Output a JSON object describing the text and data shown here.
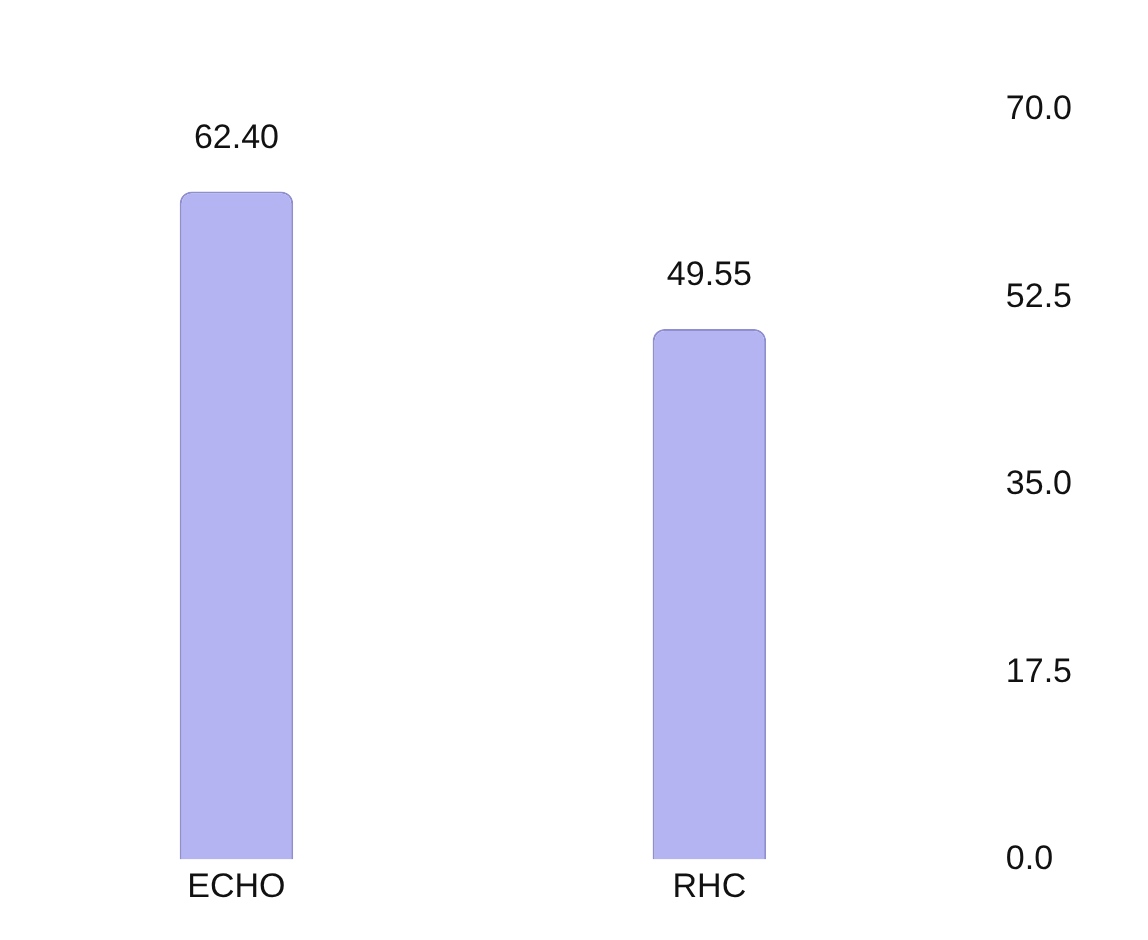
{
  "chart_data": {
    "type": "bar",
    "categories": [
      "ECHO",
      "RHC"
    ],
    "values": [
      62.4,
      49.55
    ],
    "value_labels": [
      "62.40",
      "49.55"
    ],
    "color": "#b4b4f2",
    "ylim": [
      0,
      70
    ],
    "yticks": [
      {
        "value": 0,
        "label": "0.0"
      },
      {
        "value": 17.5,
        "label": "17.5"
      },
      {
        "value": 35,
        "label": "35.0"
      },
      {
        "value": 52.5,
        "label": "52.5"
      },
      {
        "value": 70,
        "label": "70.0"
      }
    ],
    "grid": false,
    "legend": false
  }
}
